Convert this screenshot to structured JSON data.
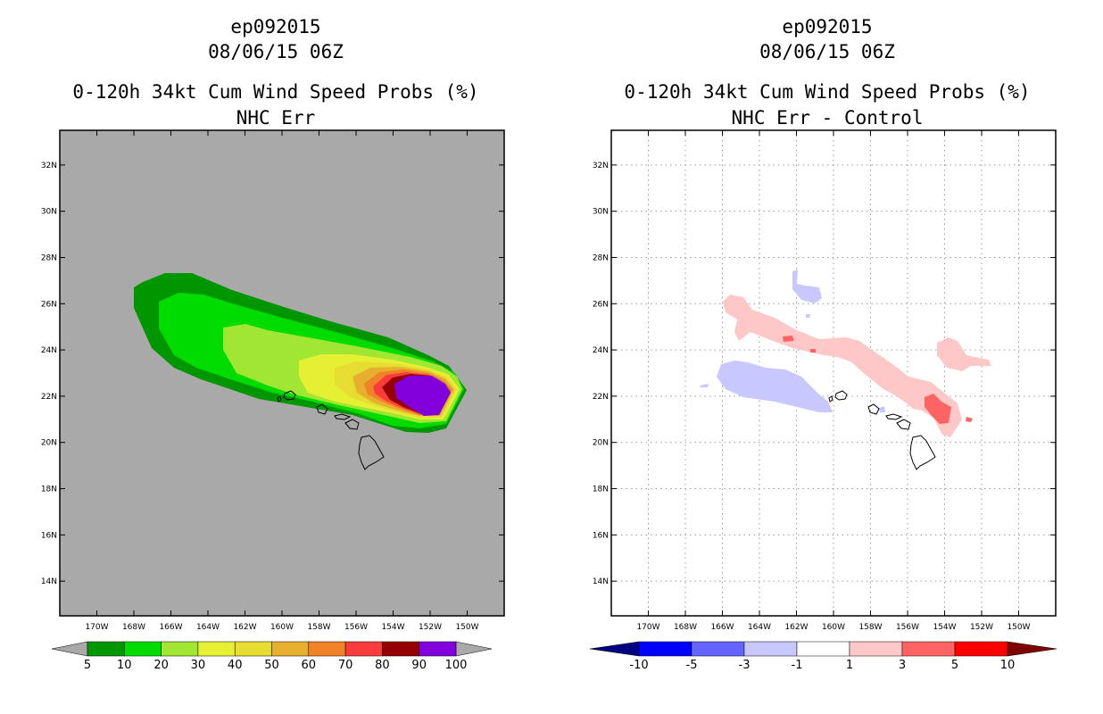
{
  "chart_data": [
    {
      "type": "heatmap",
      "storm_id": "ep092015",
      "datetime": "08/06/15 06Z",
      "title": "0-120h 34kt Cum Wind Speed Probs (%)",
      "subtitle": "NHC Err",
      "xlim": [
        -172,
        -148
      ],
      "ylim": [
        12.5,
        33.5
      ],
      "grid": false,
      "x_ticks": [
        "170W",
        "168W",
        "166W",
        "164W",
        "162W",
        "160W",
        "158W",
        "156W",
        "154W",
        "152W",
        "150W"
      ],
      "y_ticks": [
        "14N",
        "16N",
        "18N",
        "20N",
        "22N",
        "24N",
        "26N",
        "28N",
        "30N",
        "32N"
      ],
      "colorbar_labels": [
        "5",
        "10",
        "20",
        "30",
        "40",
        "50",
        "60",
        "70",
        "80",
        "90",
        "100"
      ],
      "colorbar_colors": [
        "#009600",
        "#00dc00",
        "#a0e632",
        "#e6f032",
        "#e6dc32",
        "#e6af2d",
        "#f08228",
        "#fa3c3c",
        "#960000",
        "#8200dc"
      ],
      "background_color": "#a9a9a9",
      "contour_levels": [
        5,
        10,
        20,
        30,
        40,
        50,
        60,
        70,
        80,
        90
      ],
      "probability_region": "swath from about 167.5W 26N east-southeast to about 151W 22N, maximum 90-100% near 152.5W 22N"
    },
    {
      "type": "heatmap",
      "storm_id": "ep092015",
      "datetime": "08/06/15 06Z",
      "title": "0-120h 34kt Cum Wind Speed Probs (%)",
      "subtitle": "NHC Err - Control",
      "xlim": [
        -172,
        -148
      ],
      "ylim": [
        12.5,
        33.5
      ],
      "grid": true,
      "x_ticks": [
        "170W",
        "168W",
        "166W",
        "164W",
        "162W",
        "160W",
        "158W",
        "156W",
        "154W",
        "152W",
        "150W"
      ],
      "y_ticks": [
        "14N",
        "16N",
        "18N",
        "20N",
        "22N",
        "24N",
        "26N",
        "28N",
        "30N",
        "32N"
      ],
      "colorbar_labels": [
        "-10",
        "-5",
        "-3",
        "-1",
        "1",
        "3",
        "5",
        "10"
      ],
      "colorbar_colors": [
        "#000080",
        "#0000ff",
        "#6464ff",
        "#c8c8ff",
        "#ffffff",
        "#ffc8c8",
        "#ff6464",
        "#ff0000",
        "#800000"
      ],
      "difference_regions": [
        {
          "sign": "positive",
          "range": "1 to 3",
          "area": "band from 166W 25.5N to 152W 23.5N and near 155W-153W 22N"
        },
        {
          "sign": "positive",
          "range": "3 to 5",
          "area": "near 154.5W 21.5N, 162.5W 24.5N"
        },
        {
          "sign": "negative",
          "range": "-1 to -3",
          "area": "near 166W-159W 22.5N and 163W 26.5N"
        }
      ]
    }
  ]
}
